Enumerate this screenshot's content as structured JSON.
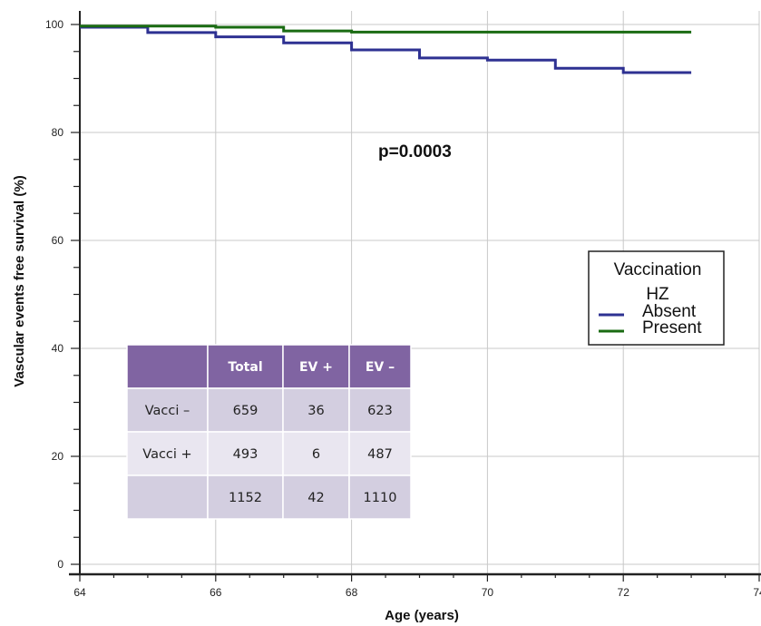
{
  "chart_data": {
    "type": "line",
    "xlabel": "Age (years)",
    "ylabel": "Vascular events free survival (%)",
    "xlim": [
      64,
      74
    ],
    "ylim": [
      0,
      100
    ],
    "x_ticks": [
      64,
      66,
      68,
      70,
      72,
      74
    ],
    "y_ticks": [
      0,
      20,
      40,
      60,
      80,
      100
    ],
    "grid": true,
    "annotation": "p=0.0003",
    "legend": {
      "title": "Vaccination HZ",
      "position": "right",
      "entries": [
        "Absent",
        "Present"
      ]
    },
    "series": [
      {
        "name": "Absent",
        "color": "#2e3192",
        "x": [
          64,
          65,
          66,
          67,
          68,
          69,
          70,
          71,
          72,
          73
        ],
        "y": [
          99.5,
          98.5,
          97.7,
          96.6,
          95.3,
          93.8,
          93.4,
          91.9,
          91.1,
          91.1
        ]
      },
      {
        "name": "Present",
        "color": "#1a6b12",
        "x": [
          64,
          66,
          67,
          68,
          73
        ],
        "y": [
          99.7,
          99.5,
          98.8,
          98.6,
          98.6
        ]
      }
    ],
    "table": {
      "header": [
        "",
        "Total",
        "EV +",
        "EV –"
      ],
      "rows": [
        [
          "Vacci –",
          "659",
          "36",
          "623"
        ],
        [
          "Vacci +",
          "493",
          "6",
          "487"
        ],
        [
          "",
          "1152",
          "42",
          "1110"
        ]
      ]
    }
  }
}
